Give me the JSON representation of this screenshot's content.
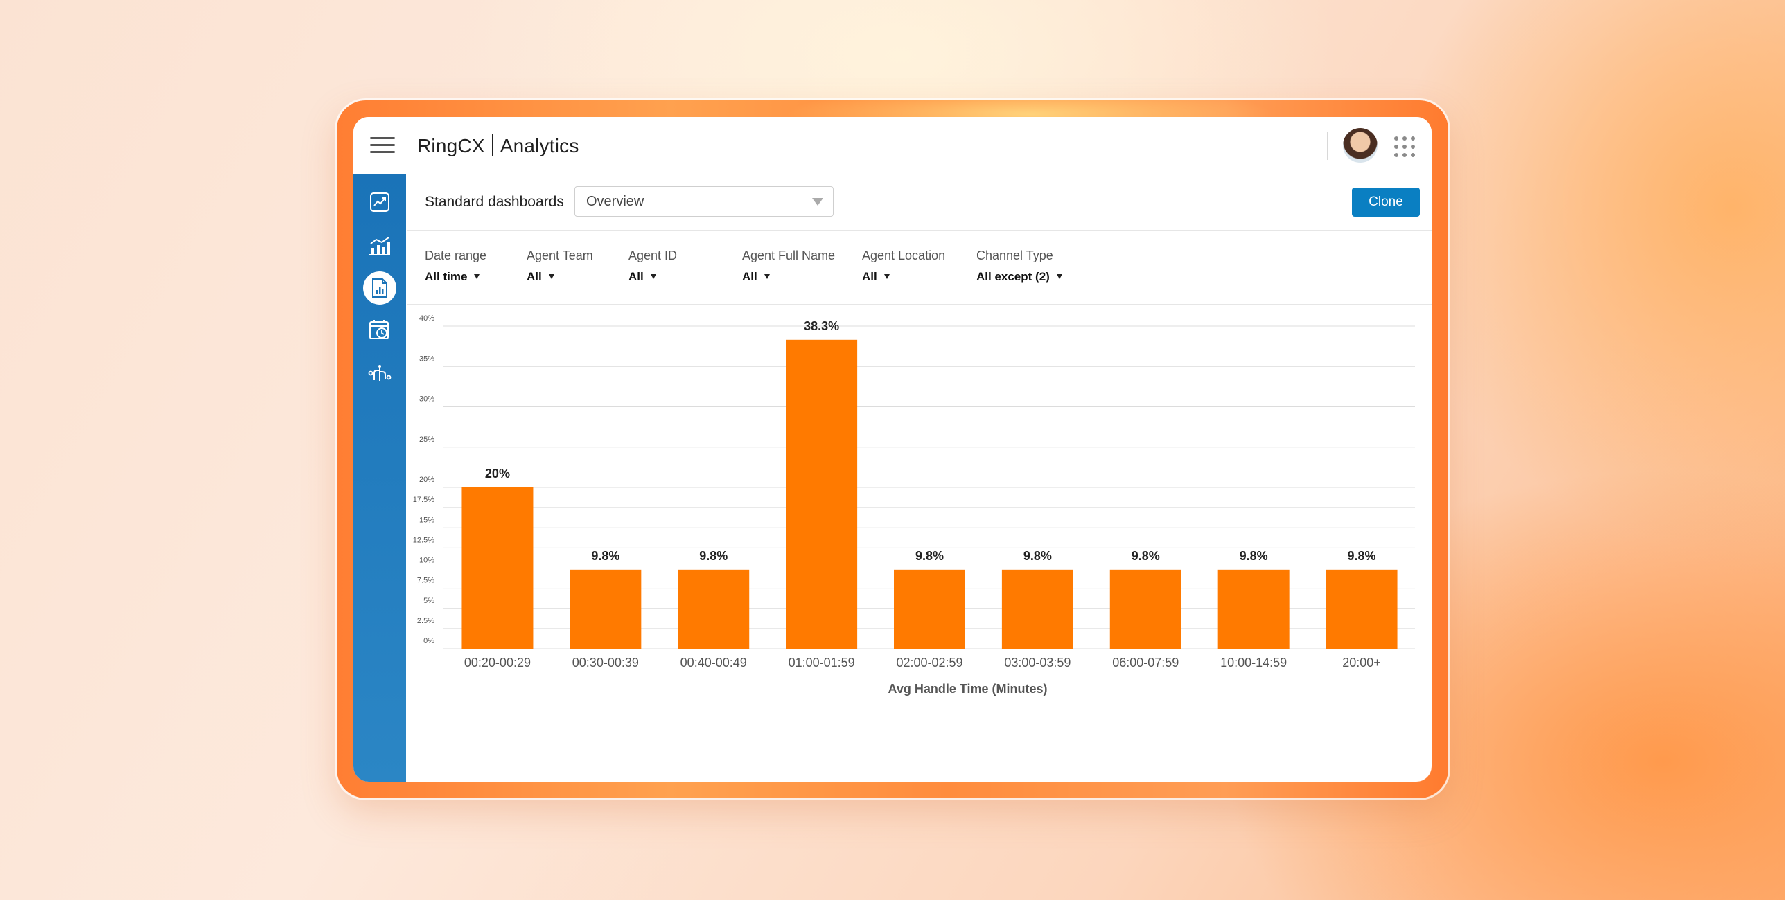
{
  "app": {
    "brand": "RingCX",
    "section": "Analytics"
  },
  "colors": {
    "accent": "#0a7fc2",
    "sidebar": "#1a73b8",
    "bar": "#ff7a00"
  },
  "sidebar": {
    "items": [
      {
        "icon": "trend-chart-icon",
        "active": false
      },
      {
        "icon": "analytics-chart-icon",
        "active": false
      },
      {
        "icon": "report-document-icon",
        "active": true
      },
      {
        "icon": "calendar-clock-icon",
        "active": false
      },
      {
        "icon": "network-nodes-icon",
        "active": false
      }
    ]
  },
  "toolbar": {
    "label": "Standard dashboards",
    "dashboard_value": "Overview",
    "clone_label": "Clone"
  },
  "filters": [
    {
      "label": "Date range",
      "value": "All time"
    },
    {
      "label": "Agent Team",
      "value": "All"
    },
    {
      "label": "Agent ID",
      "value": "All"
    },
    {
      "label": "Agent Full Name",
      "value": "All"
    },
    {
      "label": "Agent Location",
      "value": "All"
    },
    {
      "label": "Channel Type",
      "value": "All except (2)"
    }
  ],
  "chart_data": {
    "type": "bar",
    "categories": [
      "00:20-00:29",
      "00:30-00:39",
      "00:40-00:49",
      "01:00-01:59",
      "02:00-02:59",
      "03:00-03:59",
      "06:00-07:59",
      "10:00-14:59",
      "20:00+"
    ],
    "values": [
      20,
      9.8,
      9.8,
      38.3,
      9.8,
      9.8,
      9.8,
      9.8,
      9.8
    ],
    "data_labels": [
      "20%",
      "9.8%",
      "9.8%",
      "38.3%",
      "9.8%",
      "9.8%",
      "9.8%",
      "9.8%",
      "9.8%"
    ],
    "xlabel": "Avg Handle Time (Minutes)",
    "ylabel": "",
    "ylim": [
      0,
      40
    ],
    "yticks": [
      0,
      2.5,
      5,
      7.5,
      10,
      12.5,
      15,
      17.5,
      20,
      25,
      30,
      35,
      40
    ],
    "ytick_labels": [
      "0%",
      "2.5%",
      "5%",
      "7.5%",
      "10%",
      "12.5%",
      "15%",
      "17.5%",
      "20%",
      "25%",
      "30%",
      "35%",
      "40%"
    ],
    "grid": true,
    "legend": "none"
  }
}
